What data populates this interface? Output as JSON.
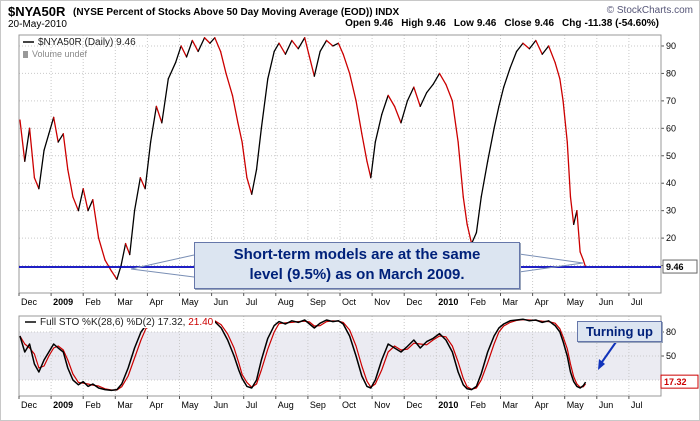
{
  "header": {
    "symbol": "$NYA50R",
    "title_rest": "(NYSE Percent of Stocks Above 50 Day Moving Average (EOD)) INDX",
    "date": "20-May-2010",
    "copyright": "© StockCharts.com",
    "quote": {
      "open_label": "Open",
      "open": "9.46",
      "high_label": "High",
      "high": "9.46",
      "low_label": "Low",
      "low": "9.46",
      "close_label": "Close",
      "close": "9.46",
      "chg_label": "Chg",
      "chg": "-11.38 (-54.60%)"
    }
  },
  "main_chart": {
    "legend_label": "$NYA50R (Daily) 9.46",
    "volume_label": "Volume undef",
    "last_value_label": "9.46",
    "annotation_line1": "Short-term models are at the same",
    "annotation_line2": "level (9.5%) as on March 2009."
  },
  "lower_chart": {
    "legend_prefix": "Full STO %K(28,6) %D(2)",
    "k_value": "17.32,",
    "d_value": "21.40",
    "last_value_label": "17.32",
    "annotation": "Turning up"
  },
  "colors": {
    "up": "#000000",
    "down": "#cc0000",
    "hline": "#0000bb",
    "grid": "#c9c9c9",
    "band": "#ebebf2",
    "annotation_text": "#00217a",
    "callout": "#7a8fb5",
    "arrow": "#1133bb"
  },
  "chart_data": [
    {
      "type": "line",
      "title": "$NYA50R (Daily) - NYSE Percent of Stocks Above 50 Day Moving Average (EOD)",
      "x_unit": "months since 1-Dec-2008",
      "x_axis_labels": [
        "Dec",
        "2009",
        "Feb",
        "Mar",
        "Apr",
        "May",
        "Jun",
        "Jul",
        "Aug",
        "Sep",
        "Oct",
        "Nov",
        "Dec",
        "2010",
        "Feb",
        "Mar",
        "Apr",
        "May",
        "Jun",
        "Jul"
      ],
      "xlim": [
        0,
        20
      ],
      "ylim": [
        0,
        100
      ],
      "yticks": [
        10,
        20,
        30,
        40,
        50,
        60,
        70,
        80,
        90
      ],
      "grid": true,
      "hline": 9.46,
      "last_value": 9.46,
      "series": [
        {
          "name": "$NYA50R percent of NYSE stocks above 50-day MA",
          "points": [
            [
              0.03,
              63
            ],
            [
              0.18,
              48
            ],
            [
              0.33,
              60
            ],
            [
              0.48,
              42
            ],
            [
              0.62,
              38
            ],
            [
              0.78,
              52
            ],
            [
              0.93,
              58
            ],
            [
              1.08,
              64
            ],
            [
              1.22,
              55
            ],
            [
              1.38,
              58
            ],
            [
              1.52,
              45
            ],
            [
              1.68,
              35
            ],
            [
              1.85,
              30
            ],
            [
              2.0,
              38
            ],
            [
              2.15,
              30
            ],
            [
              2.3,
              34
            ],
            [
              2.48,
              20
            ],
            [
              2.68,
              12
            ],
            [
              2.88,
              8
            ],
            [
              3.05,
              5
            ],
            [
              3.18,
              10
            ],
            [
              3.32,
              18
            ],
            [
              3.45,
              14
            ],
            [
              3.6,
              30
            ],
            [
              3.78,
              42
            ],
            [
              3.93,
              38
            ],
            [
              4.1,
              55
            ],
            [
              4.28,
              68
            ],
            [
              4.45,
              62
            ],
            [
              4.65,
              78
            ],
            [
              4.88,
              84
            ],
            [
              5.05,
              90
            ],
            [
              5.22,
              86
            ],
            [
              5.4,
              92
            ],
            [
              5.58,
              88
            ],
            [
              5.78,
              93
            ],
            [
              5.95,
              91
            ],
            [
              6.1,
              93
            ],
            [
              6.28,
              88
            ],
            [
              6.45,
              80
            ],
            [
              6.65,
              72
            ],
            [
              6.82,
              62
            ],
            [
              6.95,
              55
            ],
            [
              7.1,
              42
            ],
            [
              7.25,
              36
            ],
            [
              7.4,
              45
            ],
            [
              7.55,
              60
            ],
            [
              7.75,
              78
            ],
            [
              7.95,
              88
            ],
            [
              8.1,
              91
            ],
            [
              8.3,
              87
            ],
            [
              8.5,
              92
            ],
            [
              8.7,
              89
            ],
            [
              8.9,
              93
            ],
            [
              9.05,
              86
            ],
            [
              9.2,
              79
            ],
            [
              9.38,
              88
            ],
            [
              9.58,
              92
            ],
            [
              9.78,
              90
            ],
            [
              9.95,
              91
            ],
            [
              10.1,
              87
            ],
            [
              10.3,
              80
            ],
            [
              10.5,
              70
            ],
            [
              10.68,
              58
            ],
            [
              10.84,
              48
            ],
            [
              10.96,
              42
            ],
            [
              11.1,
              55
            ],
            [
              11.3,
              65
            ],
            [
              11.5,
              72
            ],
            [
              11.7,
              68
            ],
            [
              11.9,
              62
            ],
            [
              12.1,
              70
            ],
            [
              12.3,
              75
            ],
            [
              12.5,
              68
            ],
            [
              12.7,
              73
            ],
            [
              12.9,
              76
            ],
            [
              13.1,
              80
            ],
            [
              13.3,
              76
            ],
            [
              13.5,
              70
            ],
            [
              13.68,
              55
            ],
            [
              13.84,
              35
            ],
            [
              13.96,
              25
            ],
            [
              14.1,
              18
            ],
            [
              14.25,
              22
            ],
            [
              14.4,
              35
            ],
            [
              14.6,
              48
            ],
            [
              14.8,
              60
            ],
            [
              14.95,
              68
            ],
            [
              15.1,
              75
            ],
            [
              15.3,
              82
            ],
            [
              15.5,
              88
            ],
            [
              15.7,
              91
            ],
            [
              15.9,
              89
            ],
            [
              16.1,
              92
            ],
            [
              16.3,
              87
            ],
            [
              16.5,
              90
            ],
            [
              16.7,
              84
            ],
            [
              16.85,
              78
            ],
            [
              16.95,
              70
            ],
            [
              17.08,
              55
            ],
            [
              17.18,
              35
            ],
            [
              17.28,
              25
            ],
            [
              17.38,
              30
            ],
            [
              17.48,
              15
            ],
            [
              17.58,
              12
            ],
            [
              17.65,
              9.46
            ]
          ]
        }
      ]
    },
    {
      "type": "line",
      "title": "Full STO %K(28,6) %D(2)",
      "x_unit": "months since 1-Dec-2008",
      "x_axis_labels": [
        "Dec",
        "2009",
        "Feb",
        "Mar",
        "Apr",
        "May",
        "Jun",
        "Jul",
        "Aug",
        "Sep",
        "Oct",
        "Nov",
        "Dec",
        "2010",
        "Feb",
        "Mar",
        "Apr",
        "May",
        "Jun",
        "Jul"
      ],
      "xlim": [
        0,
        20
      ],
      "ylim": [
        0,
        100
      ],
      "yticks": [
        20,
        50,
        80
      ],
      "band": [
        20,
        80
      ],
      "grid": true,
      "last_values": {
        "k": 17.32,
        "d": 21.4
      },
      "series": [
        {
          "name": "%K(28,6)",
          "points": [
            [
              0.03,
              75
            ],
            [
              0.18,
              55
            ],
            [
              0.33,
              65
            ],
            [
              0.48,
              40
            ],
            [
              0.62,
              30
            ],
            [
              0.78,
              45
            ],
            [
              0.93,
              55
            ],
            [
              1.08,
              65
            ],
            [
              1.22,
              60
            ],
            [
              1.38,
              55
            ],
            [
              1.52,
              35
            ],
            [
              1.68,
              20
            ],
            [
              1.85,
              14
            ],
            [
              2.0,
              18
            ],
            [
              2.15,
              12
            ],
            [
              2.3,
              15
            ],
            [
              2.48,
              10
            ],
            [
              2.68,
              8
            ],
            [
              2.88,
              7
            ],
            [
              3.05,
              8
            ],
            [
              3.2,
              15
            ],
            [
              3.4,
              35
            ],
            [
              3.6,
              60
            ],
            [
              3.8,
              80
            ],
            [
              3.95,
              88
            ],
            [
              4.1,
              92
            ],
            [
              4.3,
              94
            ],
            [
              4.5,
              92
            ],
            [
              4.7,
              95
            ],
            [
              4.9,
              96
            ],
            [
              5.1,
              95
            ],
            [
              5.3,
              93
            ],
            [
              5.5,
              95
            ],
            [
              5.7,
              94
            ],
            [
              5.9,
              95
            ],
            [
              6.1,
              93
            ],
            [
              6.3,
              85
            ],
            [
              6.5,
              70
            ],
            [
              6.7,
              50
            ],
            [
              6.85,
              32
            ],
            [
              6.95,
              22
            ],
            [
              7.1,
              12
            ],
            [
              7.25,
              10
            ],
            [
              7.4,
              20
            ],
            [
              7.55,
              45
            ],
            [
              7.75,
              72
            ],
            [
              7.95,
              88
            ],
            [
              8.1,
              93
            ],
            [
              8.3,
              90
            ],
            [
              8.5,
              94
            ],
            [
              8.7,
              92
            ],
            [
              8.9,
              95
            ],
            [
              9.05,
              90
            ],
            [
              9.2,
              85
            ],
            [
              9.38,
              91
            ],
            [
              9.58,
              95
            ],
            [
              9.78,
              93
            ],
            [
              9.95,
              94
            ],
            [
              10.1,
              90
            ],
            [
              10.3,
              75
            ],
            [
              10.5,
              50
            ],
            [
              10.68,
              25
            ],
            [
              10.84,
              12
            ],
            [
              10.96,
              10
            ],
            [
              11.1,
              20
            ],
            [
              11.3,
              45
            ],
            [
              11.5,
              65
            ],
            [
              11.7,
              60
            ],
            [
              11.9,
              55
            ],
            [
              12.1,
              62
            ],
            [
              12.3,
              70
            ],
            [
              12.5,
              60
            ],
            [
              12.7,
              68
            ],
            [
              12.9,
              72
            ],
            [
              13.1,
              78
            ],
            [
              13.3,
              70
            ],
            [
              13.5,
              55
            ],
            [
              13.68,
              30
            ],
            [
              13.84,
              14
            ],
            [
              13.96,
              9
            ],
            [
              14.1,
              8
            ],
            [
              14.25,
              12
            ],
            [
              14.4,
              28
            ],
            [
              14.6,
              55
            ],
            [
              14.8,
              75
            ],
            [
              14.95,
              85
            ],
            [
              15.1,
              90
            ],
            [
              15.3,
              94
            ],
            [
              15.5,
              95
            ],
            [
              15.7,
              96
            ],
            [
              15.9,
              94
            ],
            [
              16.1,
              95
            ],
            [
              16.3,
              92
            ],
            [
              16.5,
              94
            ],
            [
              16.7,
              88
            ],
            [
              16.85,
              80
            ],
            [
              16.95,
              68
            ],
            [
              17.08,
              50
            ],
            [
              17.18,
              30
            ],
            [
              17.28,
              18
            ],
            [
              17.38,
              12
            ],
            [
              17.48,
              10
            ],
            [
              17.58,
              13
            ],
            [
              17.65,
              17.32
            ]
          ]
        },
        {
          "name": "%D(2)",
          "note": "2-period SMA of %K, last value 21.40"
        }
      ]
    }
  ]
}
